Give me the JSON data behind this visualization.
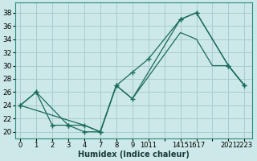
{
  "xlabel": "Humidex (Indice chaleur)",
  "bg_color": "#cce8e8",
  "grid_color": "#aacccc",
  "line_color": "#1a6b5a",
  "xtick_labels": [
    "0",
    "1",
    "2",
    "3",
    "4",
    "7",
    "8",
    "9",
    "1011",
    "",
    "1415",
    "1617",
    "",
    "2021",
    "2223"
  ],
  "xticks_pos": [
    0,
    1,
    2,
    3,
    4,
    5,
    6,
    7,
    8,
    9,
    10,
    11,
    12,
    13,
    14
  ],
  "yticks": [
    20,
    22,
    24,
    26,
    28,
    30,
    32,
    34,
    36,
    38
  ],
  "xlim": [
    -0.3,
    14.5
  ],
  "ylim": [
    19.0,
    39.5
  ],
  "series1_x": [
    0,
    1,
    2,
    3,
    4,
    5,
    6,
    7,
    8,
    10,
    11,
    13,
    14
  ],
  "series1_y": [
    24,
    26,
    21,
    21,
    20,
    20,
    27,
    29,
    31,
    37,
    38,
    30,
    27
  ],
  "series2_x": [
    0,
    1,
    3,
    4,
    5,
    6,
    7,
    10,
    11,
    13,
    14
  ],
  "series2_y": [
    24,
    26,
    21,
    21,
    20,
    27,
    25,
    37,
    38,
    30,
    27
  ],
  "series3_x": [
    0,
    4,
    5,
    6,
    7,
    10,
    11,
    12,
    13,
    14
  ],
  "series3_y": [
    24,
    21,
    20,
    27,
    25,
    35,
    34,
    30,
    30,
    27
  ]
}
